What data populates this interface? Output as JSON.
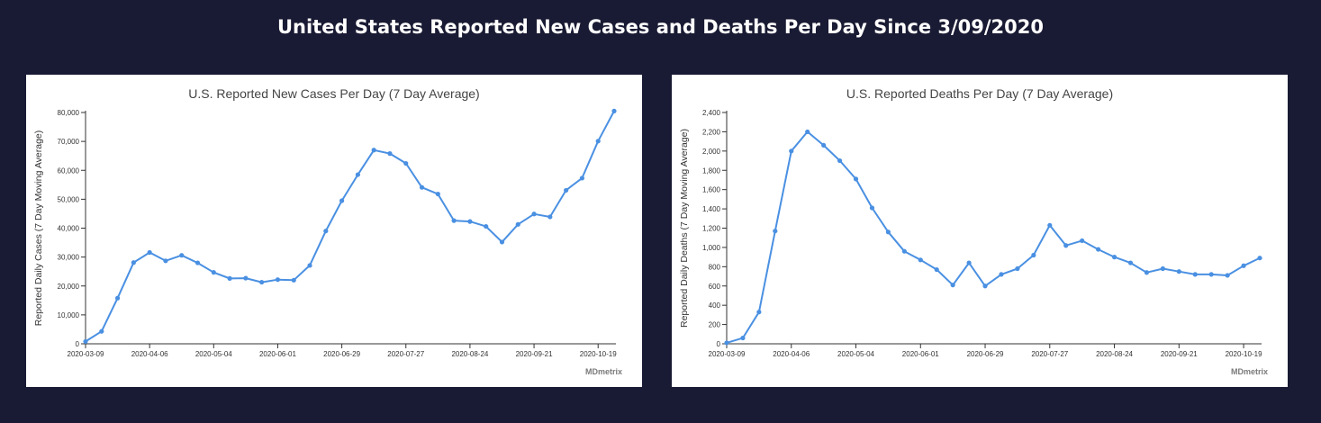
{
  "page": {
    "title": "United States Reported New Cases and Deaths Per Day Since 3/09/2020"
  },
  "colors": {
    "background": "#191a33",
    "line": "#4a90e2",
    "panel": "#ffffff"
  },
  "chart_data": [
    {
      "type": "line",
      "title": "U.S. Reported New Cases Per Day (7 Day Average)",
      "ylabel": "Reported Daily Cases (7 Day Moving Average)",
      "xlabel": "",
      "brand": "MDmetrix",
      "ylim": [
        0,
        80000
      ],
      "yticks": [
        0,
        10000,
        20000,
        30000,
        40000,
        50000,
        60000,
        70000,
        80000
      ],
      "ytick_labels": [
        "0",
        "10,000",
        "20,000",
        "30,000",
        "40,000",
        "50,000",
        "60,000",
        "70,000",
        "80,000"
      ],
      "xticks": [
        "2020-03-09",
        "2020-04-06",
        "2020-05-04",
        "2020-06-01",
        "2020-06-29",
        "2020-07-27",
        "2020-08-24",
        "2020-09-21",
        "2020-10-19"
      ],
      "grid": false,
      "series": [
        {
          "values": [
            800,
            4300,
            15800,
            28100,
            31600,
            28700,
            30600,
            28000,
            24700,
            22600,
            22700,
            21300,
            22200,
            22000,
            27100,
            39000,
            49500,
            58500,
            67000,
            65800,
            62400,
            54100,
            51800,
            42600,
            42300,
            40600,
            35200,
            41300,
            44900,
            43900,
            53100,
            57300,
            70100,
            80500
          ]
        }
      ]
    },
    {
      "type": "line",
      "title": "U.S. Reported Deaths Per Day (7 Day Average)",
      "ylabel": "Reported Daily Deaths (7 Day Moving Average)",
      "xlabel": "",
      "brand": "MDmetrix",
      "ylim": [
        0,
        2400
      ],
      "yticks": [
        0,
        200,
        400,
        600,
        800,
        1000,
        1200,
        1400,
        1600,
        1800,
        2000,
        2200,
        2400
      ],
      "ytick_labels": [
        "0",
        "200",
        "400",
        "600",
        "800",
        "1,000",
        "1,200",
        "1,400",
        "1,600",
        "1,800",
        "2,000",
        "2,200",
        "2,400"
      ],
      "xticks": [
        "2020-03-09",
        "2020-04-06",
        "2020-05-04",
        "2020-06-01",
        "2020-06-29",
        "2020-07-27",
        "2020-08-24",
        "2020-09-21",
        "2020-10-19"
      ],
      "grid": false,
      "series": [
        {
          "values": [
            10,
            60,
            330,
            1170,
            2000,
            2200,
            2060,
            1900,
            1710,
            1410,
            1160,
            960,
            870,
            770,
            610,
            840,
            600,
            720,
            780,
            920,
            1230,
            1020,
            1070,
            980,
            900,
            840,
            740,
            780,
            750,
            720,
            720,
            710,
            810,
            890
          ]
        }
      ]
    }
  ]
}
